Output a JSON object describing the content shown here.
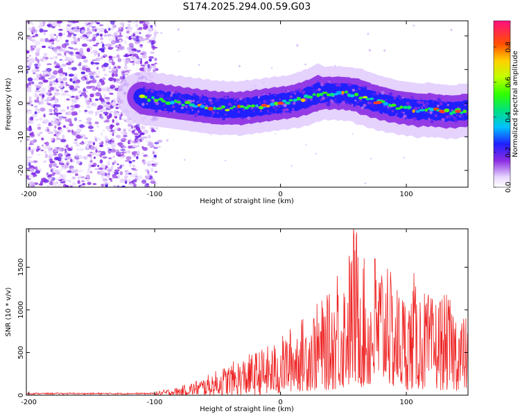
{
  "chart_data": [
    {
      "type": "heatmap",
      "title": "S174.2025.294.00.59.G03",
      "xlabel": "Height of straight line (km)",
      "ylabel": "Frequency (Hz)",
      "xlim": [
        -202,
        149
      ],
      "ylim": [
        -25,
        24.5
      ],
      "xticks": [
        -200,
        -100,
        0,
        100
      ],
      "yticks": [
        -20,
        -10,
        0,
        10,
        20
      ],
      "colorbar": {
        "label": "Normalized spectral amplitude",
        "range": [
          0,
          0.95
        ],
        "ticks": [
          0.0,
          0.2,
          0.4,
          0.6,
          0.8
        ],
        "tick_labels": [
          "0.0",
          "0.2",
          "0.4",
          "0.6",
          "0.8"
        ]
      },
      "signal_ridge": {
        "x": [
          -110,
          -90,
          -70,
          -50,
          -30,
          -10,
          0,
          10,
          20,
          30,
          40,
          50,
          60,
          70,
          80,
          90,
          100,
          110,
          120,
          130,
          140,
          149
        ],
        "y": [
          1.5,
          0.5,
          -0.5,
          -1.5,
          -1.5,
          -0.5,
          0,
          0.5,
          1.5,
          3.0,
          3.0,
          3.0,
          2.5,
          1.0,
          0,
          -1.0,
          -1.5,
          -2.0,
          -2.0,
          -2.5,
          -2.5,
          -2.0
        ]
      },
      "noise_region_x": [
        -202,
        -98
      ]
    },
    {
      "type": "line",
      "xlabel": "Height of straight line (km)",
      "ylabel": "SNR (10 * v/v)",
      "xlim": [
        -202,
        149
      ],
      "ylim": [
        0,
        1950
      ],
      "xticks": [
        -200,
        -100,
        0,
        100
      ],
      "yticks": [
        0,
        500,
        1000,
        1500
      ],
      "color": "#ee2222",
      "envelope": {
        "x": [
          -202,
          -110,
          -100,
          -80,
          -60,
          -40,
          -20,
          0,
          10,
          20,
          30,
          40,
          50,
          60,
          70,
          80,
          90,
          100,
          110,
          120,
          130,
          140,
          149
        ],
        "y": [
          25,
          25,
          40,
          100,
          220,
          380,
          520,
          650,
          800,
          900,
          1050,
          1150,
          1400,
          1950,
          1300,
          1600,
          1300,
          1150,
          1250,
          1100,
          1150,
          1000,
          850
        ]
      },
      "peaks": [
        {
          "x": 58,
          "y": 1950
        },
        {
          "x": 75,
          "y": 1600
        },
        {
          "x": 106,
          "y": 1430
        },
        {
          "x": 45,
          "y": 1400
        },
        {
          "x": 85,
          "y": 1480
        },
        {
          "x": 127,
          "y": 1100
        }
      ]
    }
  ]
}
